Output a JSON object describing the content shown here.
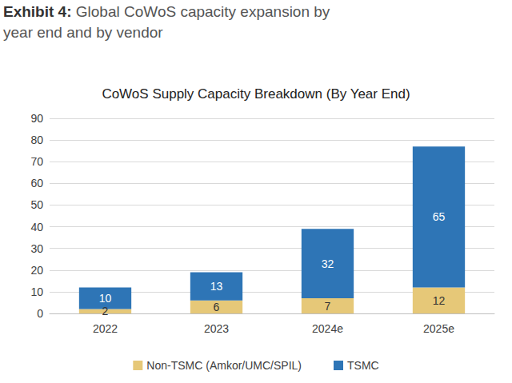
{
  "header": {
    "label": "Exhibit 4:",
    "text": "Global CoWoS capacity expansion by year end and by vendor"
  },
  "chart_data": {
    "type": "bar",
    "title": "CoWoS Supply Capacity Breakdown (By Year End)",
    "categories": [
      "2022",
      "2023",
      "2024e",
      "2025e"
    ],
    "series": [
      {
        "name": "Non-TSMC (Amkor/UMC/SPIL)",
        "color": "#e6c878",
        "values": [
          2,
          6,
          7,
          12
        ]
      },
      {
        "name": "TSMC",
        "color": "#2e75b6",
        "values": [
          10,
          13,
          32,
          65
        ]
      }
    ],
    "ylim": [
      0,
      90
    ],
    "yticks": [
      0,
      10,
      20,
      30,
      40,
      50,
      60,
      70,
      80,
      90
    ],
    "stacked": true,
    "data_labels": true,
    "grid": true,
    "legend": "bottom"
  }
}
